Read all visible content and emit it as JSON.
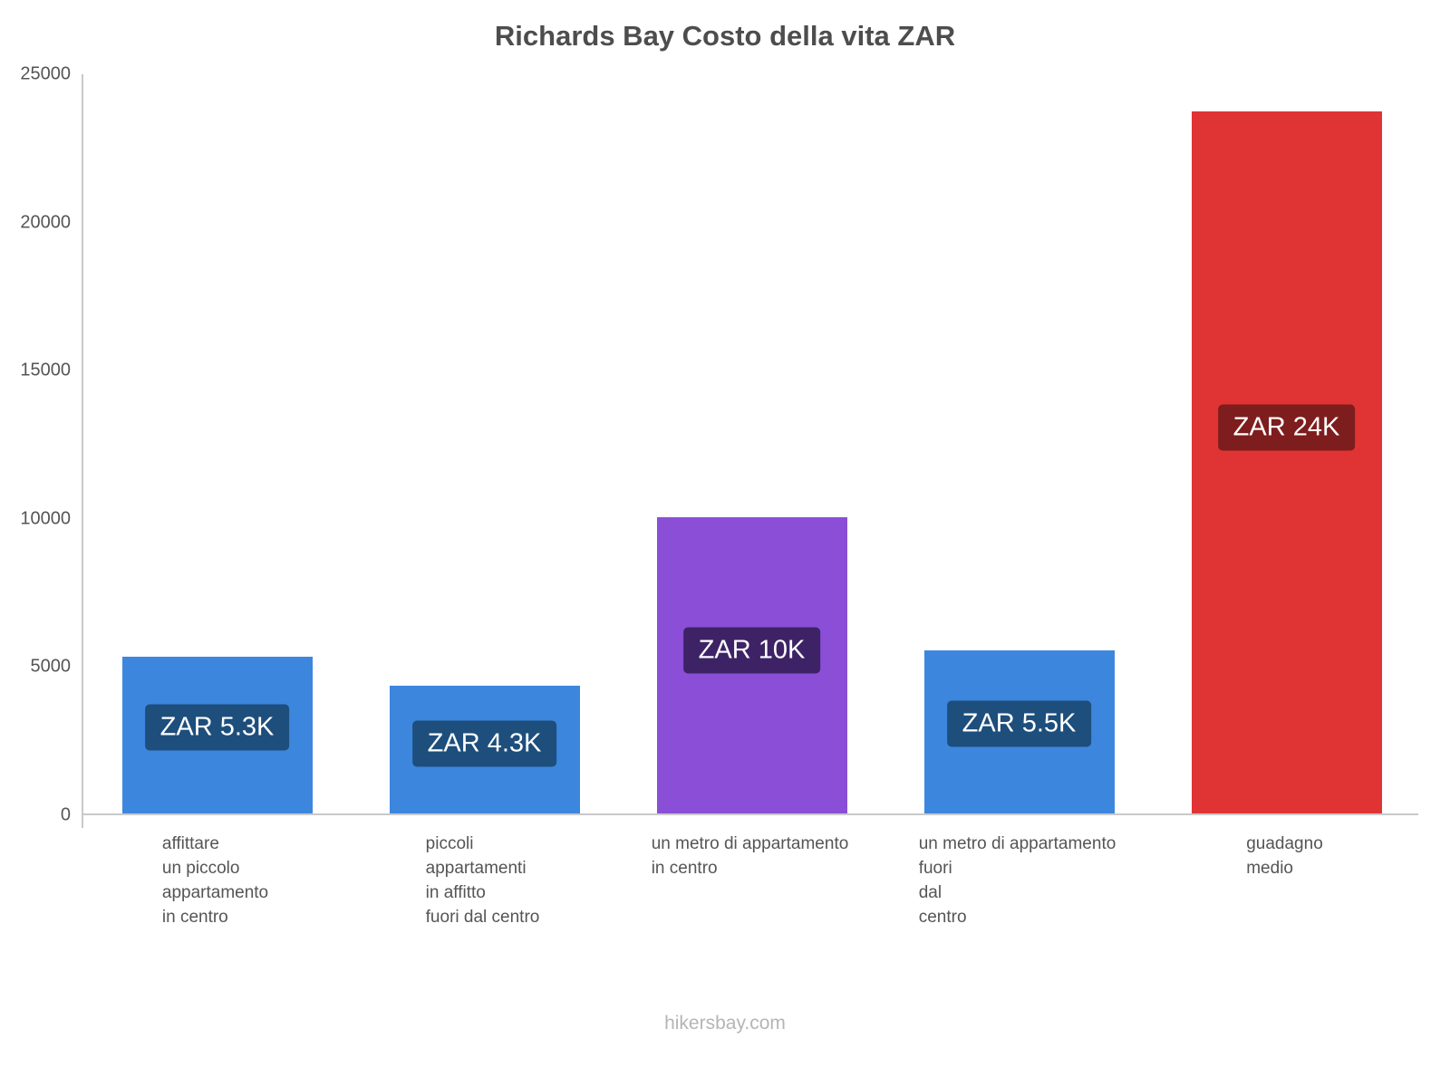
{
  "title": "Richards Bay Costo della vita ZAR",
  "footer": "hikersbay.com",
  "chart_data": {
    "type": "bar",
    "title": "Richards Bay Costo della vita ZAR",
    "categories": [
      [
        "affittare",
        "un piccolo",
        "appartamento",
        "in centro"
      ],
      [
        "piccoli",
        "appartamenti",
        "in affitto",
        "fuori dal centro"
      ],
      [
        "un metro di appartamento",
        "in centro"
      ],
      [
        "un metro di appartamento",
        "fuori",
        "dal",
        "centro"
      ],
      [
        "guadagno",
        "medio"
      ]
    ],
    "values": [
      5300,
      4300,
      10000,
      5500,
      23700
    ],
    "value_labels": [
      "ZAR 5.3K",
      "ZAR 4.3K",
      "ZAR 10K",
      "ZAR 5.5K",
      "ZAR 24K"
    ],
    "bar_colors": [
      "#3d86de",
      "#3d86de",
      "#8a4fd6",
      "#3d86de",
      "#e03434"
    ],
    "label_bg_colors": [
      "#1d4e7c",
      "#1d4e7c",
      "#3d2366",
      "#1d4e7c",
      "#7e1d1d"
    ],
    "xlabel": "",
    "ylabel": "",
    "ylim": [
      0,
      25000
    ],
    "yticks": [
      0,
      5000,
      10000,
      15000,
      20000,
      25000
    ],
    "grid": false,
    "legend": false
  }
}
